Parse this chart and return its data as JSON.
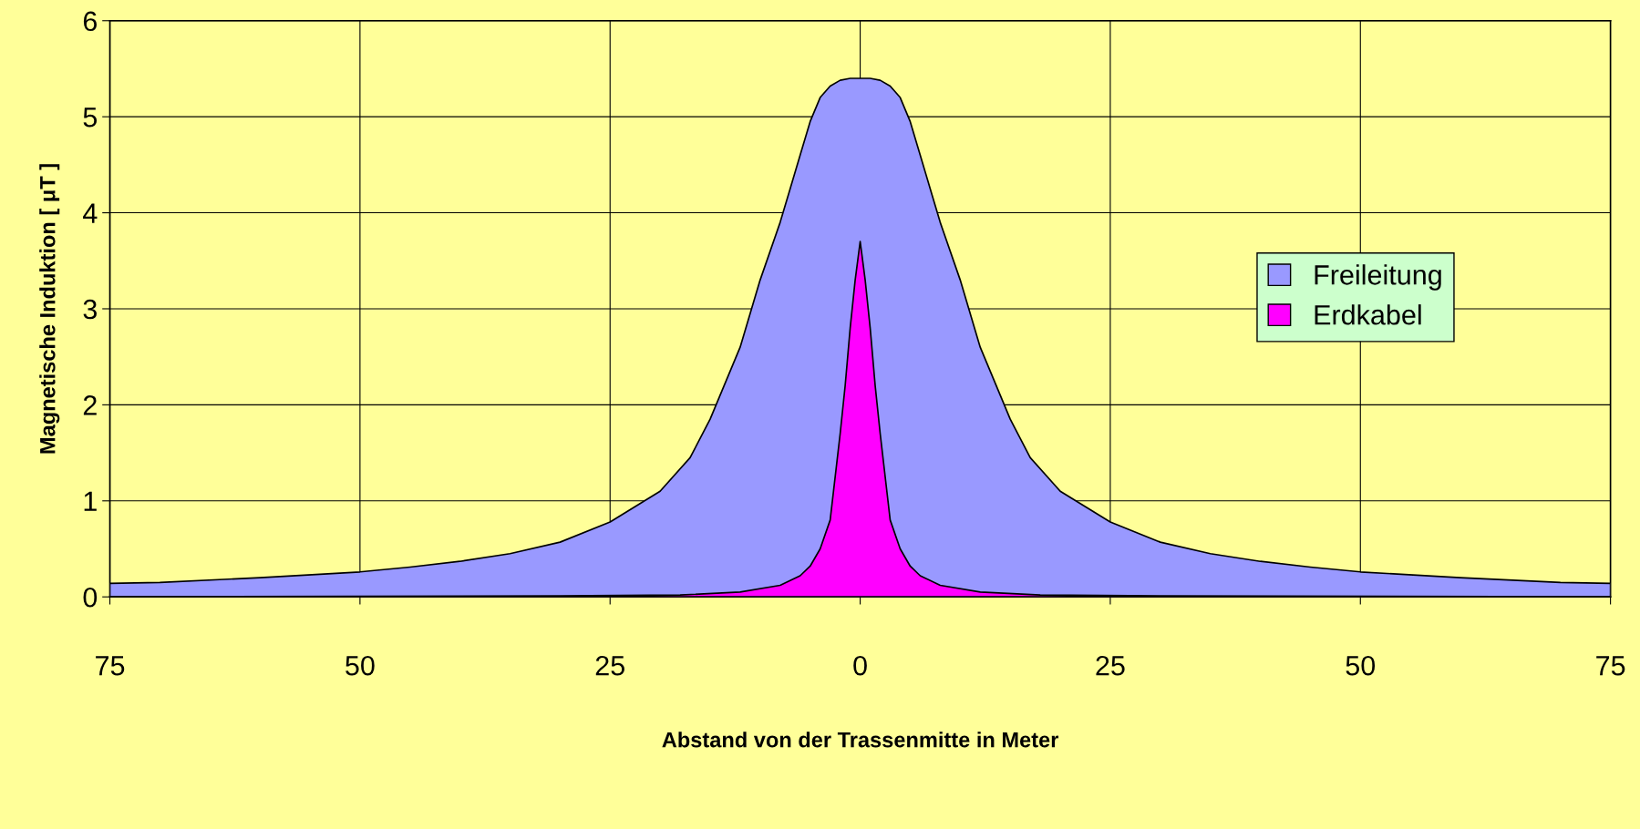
{
  "chart_data": {
    "type": "area",
    "xlabel": "Abstand von der Trassenmitte in Meter",
    "ylabel": "Magnetische Induktion [ μT ]",
    "series": [
      {
        "name": "Freileitung",
        "color": "#9999ff",
        "x": [
          -75,
          -70,
          -60,
          -50,
          -45,
          -40,
          -35,
          -30,
          -25,
          -20,
          -17,
          -15,
          -12,
          -10,
          -8,
          -7,
          -6,
          -5,
          -4,
          -3,
          -2,
          -1,
          0,
          1,
          2,
          3,
          4,
          5,
          6,
          7,
          8,
          10,
          12,
          15,
          17,
          20,
          25,
          30,
          35,
          40,
          45,
          50,
          60,
          70,
          75
        ],
        "values": [
          0.14,
          0.15,
          0.2,
          0.26,
          0.31,
          0.37,
          0.45,
          0.57,
          0.78,
          1.1,
          1.45,
          1.85,
          2.6,
          3.3,
          3.9,
          4.25,
          4.6,
          4.95,
          5.2,
          5.32,
          5.38,
          5.4,
          5.4,
          5.4,
          5.38,
          5.32,
          5.2,
          4.95,
          4.6,
          4.25,
          3.9,
          3.3,
          2.6,
          1.85,
          1.45,
          1.1,
          0.78,
          0.57,
          0.45,
          0.37,
          0.31,
          0.26,
          0.2,
          0.15,
          0.14
        ]
      },
      {
        "name": "Erdkabel",
        "color": "#ff00ff",
        "x": [
          -75,
          -30,
          -18,
          -12,
          -8,
          -6,
          -5,
          -4,
          -3,
          -2,
          -1.5,
          -1,
          -0.5,
          0,
          0.5,
          1,
          1.5,
          2,
          3,
          4,
          5,
          6,
          8,
          12,
          18,
          30,
          75
        ],
        "values": [
          0,
          0.01,
          0.02,
          0.05,
          0.12,
          0.22,
          0.32,
          0.5,
          0.8,
          1.7,
          2.2,
          2.8,
          3.3,
          3.7,
          3.3,
          2.8,
          2.2,
          1.7,
          0.8,
          0.5,
          0.32,
          0.22,
          0.12,
          0.05,
          0.02,
          0.01,
          0
        ]
      }
    ],
    "xlim": [
      -75,
      75
    ],
    "xticks": [
      {
        "value": -75,
        "label": "75"
      },
      {
        "value": -50,
        "label": "50"
      },
      {
        "value": -25,
        "label": "25"
      },
      0,
      25,
      50,
      75
    ],
    "ylim": [
      0,
      6
    ],
    "yticks": [
      0,
      1,
      2,
      3,
      4,
      5,
      6
    ],
    "grid": true,
    "legend": "right"
  }
}
